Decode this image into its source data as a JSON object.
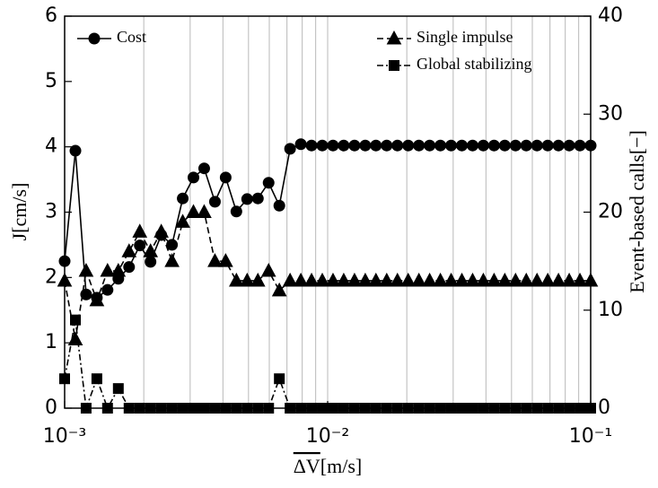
{
  "chart_data": {
    "type": "line",
    "xlabel": "ΔV",
    "xlabel_unit": "[m/s]",
    "ylabel": "J[cm/s]",
    "y2label": "Event-based calls[−]",
    "xscale": "log",
    "grid": "x",
    "xlim": [
      0.001,
      0.1
    ],
    "xticks": [
      {
        "value": 0.001,
        "label": "10⁻³"
      },
      {
        "value": 0.01,
        "label": "10⁻²"
      },
      {
        "value": 0.1,
        "label": "10⁻¹"
      }
    ],
    "xminorticks": [
      0.002,
      0.003,
      0.004,
      0.005,
      0.006,
      0.007,
      0.008,
      0.009,
      0.02,
      0.03,
      0.04,
      0.05,
      0.06,
      0.07,
      0.08,
      0.09
    ],
    "ylim": [
      0,
      6
    ],
    "yticks": [
      0,
      1,
      2,
      3,
      4,
      5,
      6
    ],
    "y2lim": [
      0,
      40
    ],
    "y2ticks": [
      0,
      10,
      20,
      30,
      40
    ],
    "x": [
      0.001,
      0.001099,
      0.001207,
      0.001326,
      0.001456,
      0.0016,
      0.001758,
      0.001931,
      0.002121,
      0.00233,
      0.00256,
      0.002812,
      0.003089,
      0.003393,
      0.003728,
      0.004095,
      0.004498,
      0.004942,
      0.005429,
      0.005964,
      0.006551,
      0.007197,
      0.007906,
      0.008685,
      0.009541,
      0.01048,
      0.01151,
      0.01265,
      0.0139,
      0.01526,
      0.01677,
      0.01842,
      0.02024,
      0.02223,
      0.02442,
      0.02683,
      0.02947,
      0.03238,
      0.03557,
      0.03907,
      0.04292,
      0.04715,
      0.0518,
      0.0569,
      0.06251,
      0.06867,
      0.07543,
      0.08286,
      0.09103,
      0.1
    ],
    "series": [
      {
        "name": "Cost",
        "color": "#000000",
        "marker": "circle",
        "dash": "solid",
        "legend": "upper left",
        "values": [
          2.25,
          3.94,
          1.74,
          1.69,
          1.81,
          1.98,
          2.16,
          2.49,
          2.24,
          2.65,
          2.5,
          3.21,
          3.53,
          3.67,
          3.16,
          3.53,
          3.01,
          3.2,
          3.21,
          3.45,
          3.1,
          3.97,
          4.04,
          4.02,
          4.02,
          4.02,
          4.02,
          4.02,
          4.02,
          4.02,
          4.02,
          4.02,
          4.02,
          4.02,
          4.02,
          4.02,
          4.02,
          4.02,
          4.02,
          4.02,
          4.02,
          4.02,
          4.02,
          4.02,
          4.02,
          4.02,
          4.02,
          4.02,
          4.02,
          4.02
        ]
      },
      {
        "name": "Single impulse",
        "color": "#000000",
        "marker": "triangle",
        "dash": "dashed",
        "axis": "y2",
        "legend": "upper right",
        "values": [
          13,
          7,
          14,
          11,
          14,
          14,
          16,
          18,
          16,
          18,
          15,
          19,
          20,
          20,
          15,
          15,
          13,
          13,
          13,
          14,
          12,
          13,
          13,
          13,
          13,
          13,
          13,
          13,
          13,
          13,
          13,
          13,
          13,
          13,
          13,
          13,
          13,
          13,
          13,
          13,
          13,
          13,
          13,
          13,
          13,
          13,
          13,
          13,
          13,
          13
        ]
      },
      {
        "name": "Global stabilizing",
        "color": "#000000",
        "marker": "square",
        "dash": "dashdot",
        "axis": "y2",
        "legend": "upper right",
        "values": [
          3,
          9,
          0,
          3,
          0,
          2,
          0,
          0,
          0,
          0,
          0,
          0,
          0,
          0,
          0,
          0,
          0,
          0,
          0,
          0,
          3,
          0,
          0,
          0,
          0,
          0,
          0,
          0,
          0,
          0,
          0,
          0,
          0,
          0,
          0,
          0,
          0,
          0,
          0,
          0,
          0,
          0,
          0,
          0,
          0,
          0,
          0,
          0,
          0,
          0
        ]
      }
    ]
  }
}
